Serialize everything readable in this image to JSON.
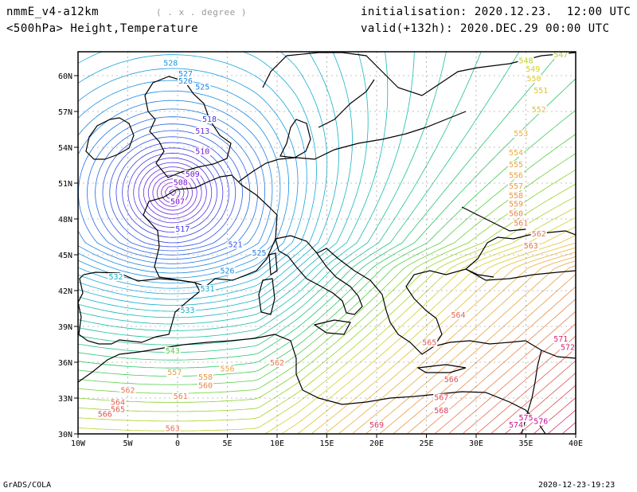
{
  "header": {
    "model": "nmmE_v4-a12km",
    "resolution": "( . x . degree )",
    "field": "<500hPa> Height,Temperature",
    "init": "initialisation: 2020.12.23.  12:00 UTC",
    "valid": "valid(+132h): 2020.DEC.29 00:00 UTC"
  },
  "footer": {
    "left": "GrADS/COLA",
    "right": "2020-12-23-19:23"
  },
  "map": {
    "lat_range": [
      30,
      62
    ],
    "lon_range": [
      -10,
      40
    ],
    "lat_ticks": [
      "60N",
      "57N",
      "54N",
      "51N",
      "48N",
      "45N",
      "42N",
      "39N",
      "36N",
      "33N",
      "30N"
    ],
    "lon_ticks": [
      "10W",
      "5W",
      "0",
      "5E",
      "10E",
      "15E",
      "20E",
      "25E",
      "30E",
      "35E",
      "40E"
    ],
    "low_center": {
      "lon": -0.5,
      "lat": 50.2,
      "value": 507
    },
    "contour_labels": [
      {
        "text": "528",
        "lon": -0.7,
        "lat": 60.9
      },
      {
        "text": "527",
        "lon": 0.8,
        "lat": 60.0
      },
      {
        "text": "526",
        "lon": 0.8,
        "lat": 59.4
      },
      {
        "text": "525",
        "lon": 2.5,
        "lat": 58.9
      },
      {
        "text": "518",
        "lon": 3.2,
        "lat": 56.2
      },
      {
        "text": "513",
        "lon": 2.5,
        "lat": 55.2
      },
      {
        "text": "510",
        "lon": 2.5,
        "lat": 53.5
      },
      {
        "text": "509",
        "lon": 1.5,
        "lat": 51.6
      },
      {
        "text": "508",
        "lon": 0.3,
        "lat": 50.9
      },
      {
        "text": "507",
        "lon": 0.0,
        "lat": 49.3
      },
      {
        "text": "517",
        "lon": 0.5,
        "lat": 47.0
      },
      {
        "text": "521",
        "lon": 5.8,
        "lat": 45.7
      },
      {
        "text": "525",
        "lon": 8.2,
        "lat": 45.0
      },
      {
        "text": "526",
        "lon": 5.0,
        "lat": 43.5
      },
      {
        "text": "531",
        "lon": 3.0,
        "lat": 42.0
      },
      {
        "text": "532",
        "lon": -6.2,
        "lat": 43.0
      },
      {
        "text": "533",
        "lon": 1.0,
        "lat": 40.2
      },
      {
        "text": "543",
        "lon": -0.5,
        "lat": 36.8
      },
      {
        "text": "557",
        "lon": -0.3,
        "lat": 35.0
      },
      {
        "text": "556",
        "lon": 5.0,
        "lat": 35.3
      },
      {
        "text": "558",
        "lon": 2.8,
        "lat": 34.6
      },
      {
        "text": "560",
        "lon": 2.8,
        "lat": 33.9
      },
      {
        "text": "561",
        "lon": 0.3,
        "lat": 33.0
      },
      {
        "text": "562",
        "lon": -5.0,
        "lat": 33.5
      },
      {
        "text": "563",
        "lon": -0.5,
        "lat": 30.3
      },
      {
        "text": "564",
        "lon": -6.0,
        "lat": 32.5
      },
      {
        "text": "565",
        "lon": -6.0,
        "lat": 31.9
      },
      {
        "text": "566",
        "lon": -7.3,
        "lat": 31.5
      },
      {
        "text": "562",
        "lon": 10.0,
        "lat": 35.8
      },
      {
        "text": "569",
        "lon": 20.0,
        "lat": 30.6
      },
      {
        "text": "568",
        "lon": 26.5,
        "lat": 31.8
      },
      {
        "text": "567",
        "lon": 26.5,
        "lat": 32.9
      },
      {
        "text": "566",
        "lon": 27.5,
        "lat": 34.4
      },
      {
        "text": "565",
        "lon": 25.3,
        "lat": 37.5
      },
      {
        "text": "564",
        "lon": 28.2,
        "lat": 39.8
      },
      {
        "text": "571",
        "lon": 38.5,
        "lat": 37.8
      },
      {
        "text": "572",
        "lon": 39.2,
        "lat": 37.1
      },
      {
        "text": "574",
        "lon": 34.0,
        "lat": 30.6
      },
      {
        "text": "575",
        "lon": 35.0,
        "lat": 31.2
      },
      {
        "text": "576",
        "lon": 36.5,
        "lat": 30.9
      },
      {
        "text": "563",
        "lon": 35.5,
        "lat": 45.6
      },
      {
        "text": "562",
        "lon": 36.3,
        "lat": 46.6
      },
      {
        "text": "561",
        "lon": 34.5,
        "lat": 47.5
      },
      {
        "text": "560",
        "lon": 34.0,
        "lat": 48.3
      },
      {
        "text": "559",
        "lon": 34.0,
        "lat": 49.1
      },
      {
        "text": "558",
        "lon": 34.0,
        "lat": 49.8
      },
      {
        "text": "557",
        "lon": 34.0,
        "lat": 50.6
      },
      {
        "text": "556",
        "lon": 34.0,
        "lat": 51.5
      },
      {
        "text": "555",
        "lon": 34.0,
        "lat": 52.4
      },
      {
        "text": "554",
        "lon": 34.0,
        "lat": 53.4
      },
      {
        "text": "553",
        "lon": 34.5,
        "lat": 55.0
      },
      {
        "text": "552",
        "lon": 36.3,
        "lat": 57.0
      },
      {
        "text": "551",
        "lon": 36.5,
        "lat": 58.6
      },
      {
        "text": "550",
        "lon": 35.8,
        "lat": 59.6
      },
      {
        "text": "549",
        "lon": 35.7,
        "lat": 60.4
      },
      {
        "text": "548",
        "lon": 35.0,
        "lat": 61.1
      },
      {
        "text": "547",
        "lon": 38.5,
        "lat": 61.6
      }
    ]
  }
}
